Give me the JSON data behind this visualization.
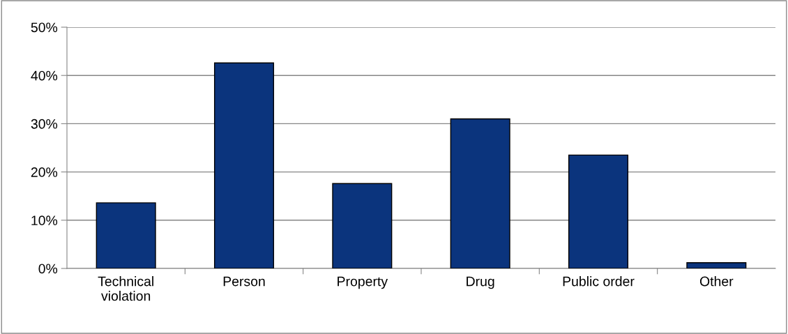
{
  "chart_data": {
    "type": "bar",
    "categories": [
      "Technical\nviolation",
      "Person",
      "Property",
      "Drug",
      "Public order",
      "Other"
    ],
    "values": [
      13.6,
      42.6,
      17.6,
      31.0,
      23.5,
      1.2
    ],
    "color": "#0b347d",
    "ylim": [
      0,
      50
    ],
    "yticks": [
      {
        "value": 0,
        "label": "0%"
      },
      {
        "value": 10,
        "label": "10%"
      },
      {
        "value": 20,
        "label": "20%"
      },
      {
        "value": 30,
        "label": "30%"
      },
      {
        "value": 40,
        "label": "40%"
      },
      {
        "value": 50,
        "label": "50%"
      }
    ],
    "grid": "y"
  }
}
